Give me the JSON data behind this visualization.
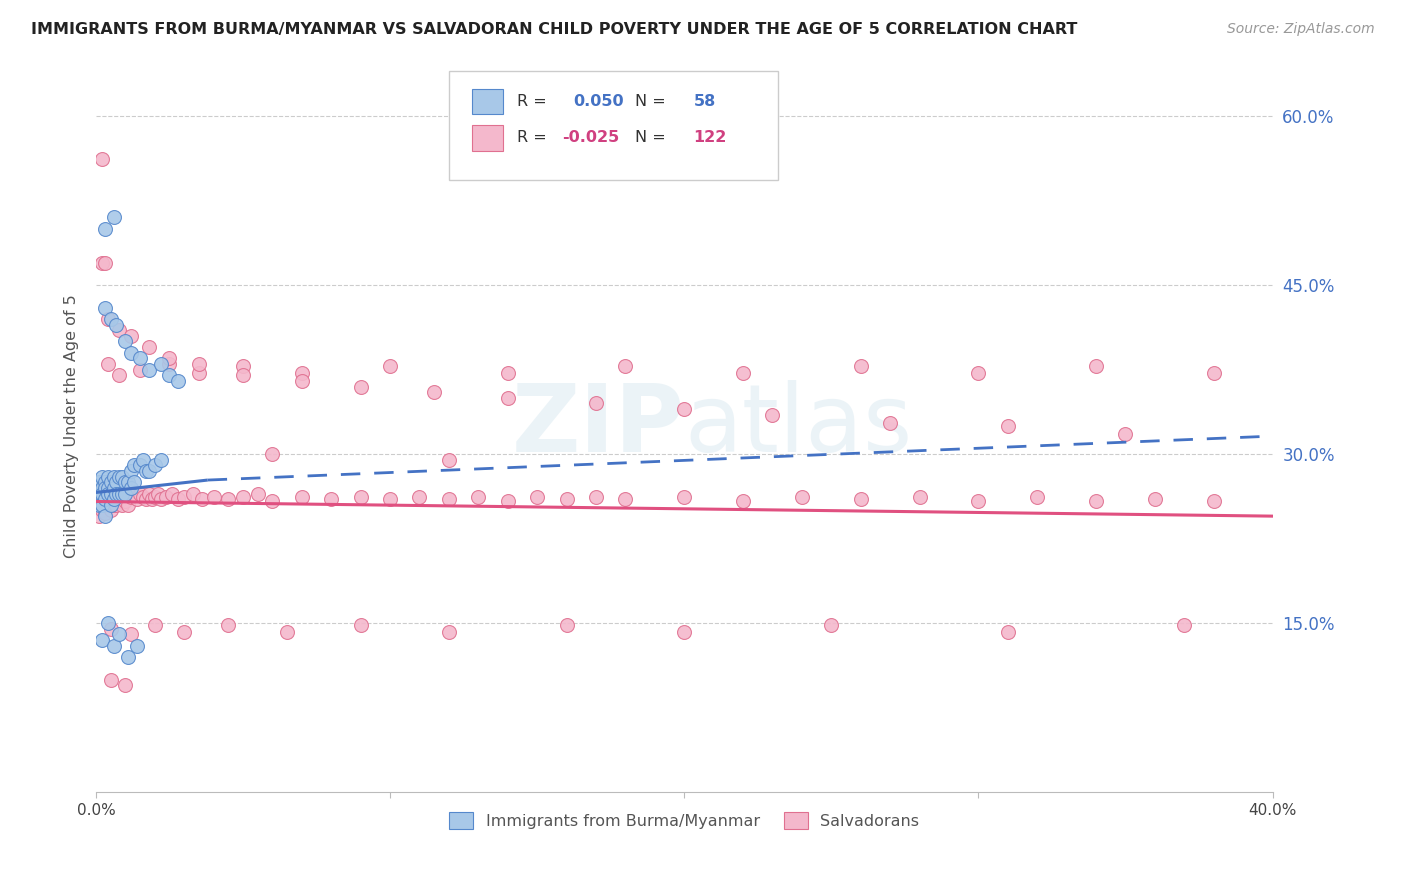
{
  "title": "IMMIGRANTS FROM BURMA/MYANMAR VS SALVADORAN CHILD POVERTY UNDER THE AGE OF 5 CORRELATION CHART",
  "source": "Source: ZipAtlas.com",
  "ylabel": "Child Poverty Under the Age of 5",
  "legend_label1": "Immigrants from Burma/Myanmar",
  "legend_label2": "Salvadorans",
  "color_blue": "#a8c8e8",
  "color_pink": "#f4b8cc",
  "color_blue_edge": "#5588cc",
  "color_pink_edge": "#e07090",
  "color_blue_text": "#4472c4",
  "color_pink_text": "#d04080",
  "trend_blue": "#4472c4",
  "trend_pink": "#e05080",
  "xmin": 0.0,
  "xmax": 0.4,
  "ymin": 0.0,
  "ymax": 0.65,
  "blue_x": [
    0.001,
    0.001,
    0.001,
    0.001,
    0.002,
    0.002,
    0.002,
    0.002,
    0.003,
    0.003,
    0.003,
    0.003,
    0.004,
    0.004,
    0.004,
    0.005,
    0.005,
    0.005,
    0.006,
    0.006,
    0.006,
    0.007,
    0.007,
    0.008,
    0.008,
    0.009,
    0.009,
    0.01,
    0.01,
    0.011,
    0.012,
    0.012,
    0.013,
    0.013,
    0.015,
    0.016,
    0.017,
    0.018,
    0.02,
    0.022,
    0.003,
    0.005,
    0.007,
    0.01,
    0.012,
    0.015,
    0.018,
    0.022,
    0.025,
    0.028,
    0.002,
    0.004,
    0.006,
    0.008,
    0.011,
    0.014,
    0.003,
    0.006
  ],
  "blue_y": [
    0.275,
    0.265,
    0.26,
    0.255,
    0.28,
    0.27,
    0.265,
    0.255,
    0.275,
    0.27,
    0.26,
    0.245,
    0.28,
    0.27,
    0.265,
    0.275,
    0.265,
    0.255,
    0.28,
    0.27,
    0.26,
    0.275,
    0.265,
    0.28,
    0.265,
    0.28,
    0.265,
    0.275,
    0.265,
    0.275,
    0.285,
    0.27,
    0.29,
    0.275,
    0.29,
    0.295,
    0.285,
    0.285,
    0.29,
    0.295,
    0.43,
    0.42,
    0.415,
    0.4,
    0.39,
    0.385,
    0.375,
    0.38,
    0.37,
    0.365,
    0.135,
    0.15,
    0.13,
    0.14,
    0.12,
    0.13,
    0.5,
    0.51
  ],
  "pink_x": [
    0.001,
    0.001,
    0.001,
    0.002,
    0.002,
    0.002,
    0.003,
    0.003,
    0.003,
    0.004,
    0.004,
    0.005,
    0.005,
    0.005,
    0.006,
    0.006,
    0.007,
    0.007,
    0.008,
    0.008,
    0.009,
    0.009,
    0.01,
    0.01,
    0.011,
    0.011,
    0.012,
    0.013,
    0.014,
    0.015,
    0.016,
    0.017,
    0.018,
    0.019,
    0.02,
    0.021,
    0.022,
    0.024,
    0.026,
    0.028,
    0.03,
    0.033,
    0.036,
    0.04,
    0.045,
    0.05,
    0.055,
    0.06,
    0.07,
    0.08,
    0.09,
    0.1,
    0.11,
    0.12,
    0.13,
    0.14,
    0.15,
    0.16,
    0.17,
    0.18,
    0.2,
    0.22,
    0.24,
    0.26,
    0.28,
    0.3,
    0.32,
    0.34,
    0.36,
    0.38,
    0.004,
    0.008,
    0.015,
    0.025,
    0.035,
    0.05,
    0.07,
    0.1,
    0.14,
    0.18,
    0.22,
    0.26,
    0.3,
    0.34,
    0.38,
    0.005,
    0.012,
    0.02,
    0.03,
    0.045,
    0.065,
    0.09,
    0.12,
    0.16,
    0.2,
    0.25,
    0.31,
    0.37,
    0.06,
    0.12,
    0.004,
    0.008,
    0.012,
    0.018,
    0.025,
    0.035,
    0.05,
    0.07,
    0.09,
    0.115,
    0.14,
    0.17,
    0.2,
    0.23,
    0.27,
    0.31,
    0.35,
    0.005,
    0.01,
    0.002,
    0.002,
    0.003
  ],
  "pink_y": [
    0.265,
    0.255,
    0.245,
    0.27,
    0.26,
    0.25,
    0.268,
    0.258,
    0.248,
    0.265,
    0.255,
    0.27,
    0.26,
    0.25,
    0.268,
    0.255,
    0.265,
    0.255,
    0.268,
    0.258,
    0.265,
    0.255,
    0.268,
    0.258,
    0.265,
    0.255,
    0.262,
    0.265,
    0.26,
    0.265,
    0.262,
    0.26,
    0.265,
    0.26,
    0.262,
    0.265,
    0.26,
    0.262,
    0.265,
    0.26,
    0.262,
    0.265,
    0.26,
    0.262,
    0.26,
    0.262,
    0.265,
    0.258,
    0.262,
    0.26,
    0.262,
    0.26,
    0.262,
    0.26,
    0.262,
    0.258,
    0.262,
    0.26,
    0.262,
    0.26,
    0.262,
    0.258,
    0.262,
    0.26,
    0.262,
    0.258,
    0.262,
    0.258,
    0.26,
    0.258,
    0.38,
    0.37,
    0.375,
    0.38,
    0.372,
    0.378,
    0.372,
    0.378,
    0.372,
    0.378,
    0.372,
    0.378,
    0.372,
    0.378,
    0.372,
    0.145,
    0.14,
    0.148,
    0.142,
    0.148,
    0.142,
    0.148,
    0.142,
    0.148,
    0.142,
    0.148,
    0.142,
    0.148,
    0.3,
    0.295,
    0.42,
    0.41,
    0.405,
    0.395,
    0.385,
    0.38,
    0.37,
    0.365,
    0.36,
    0.355,
    0.35,
    0.345,
    0.34,
    0.335,
    0.328,
    0.325,
    0.318,
    0.1,
    0.095,
    0.562,
    0.47,
    0.47
  ]
}
